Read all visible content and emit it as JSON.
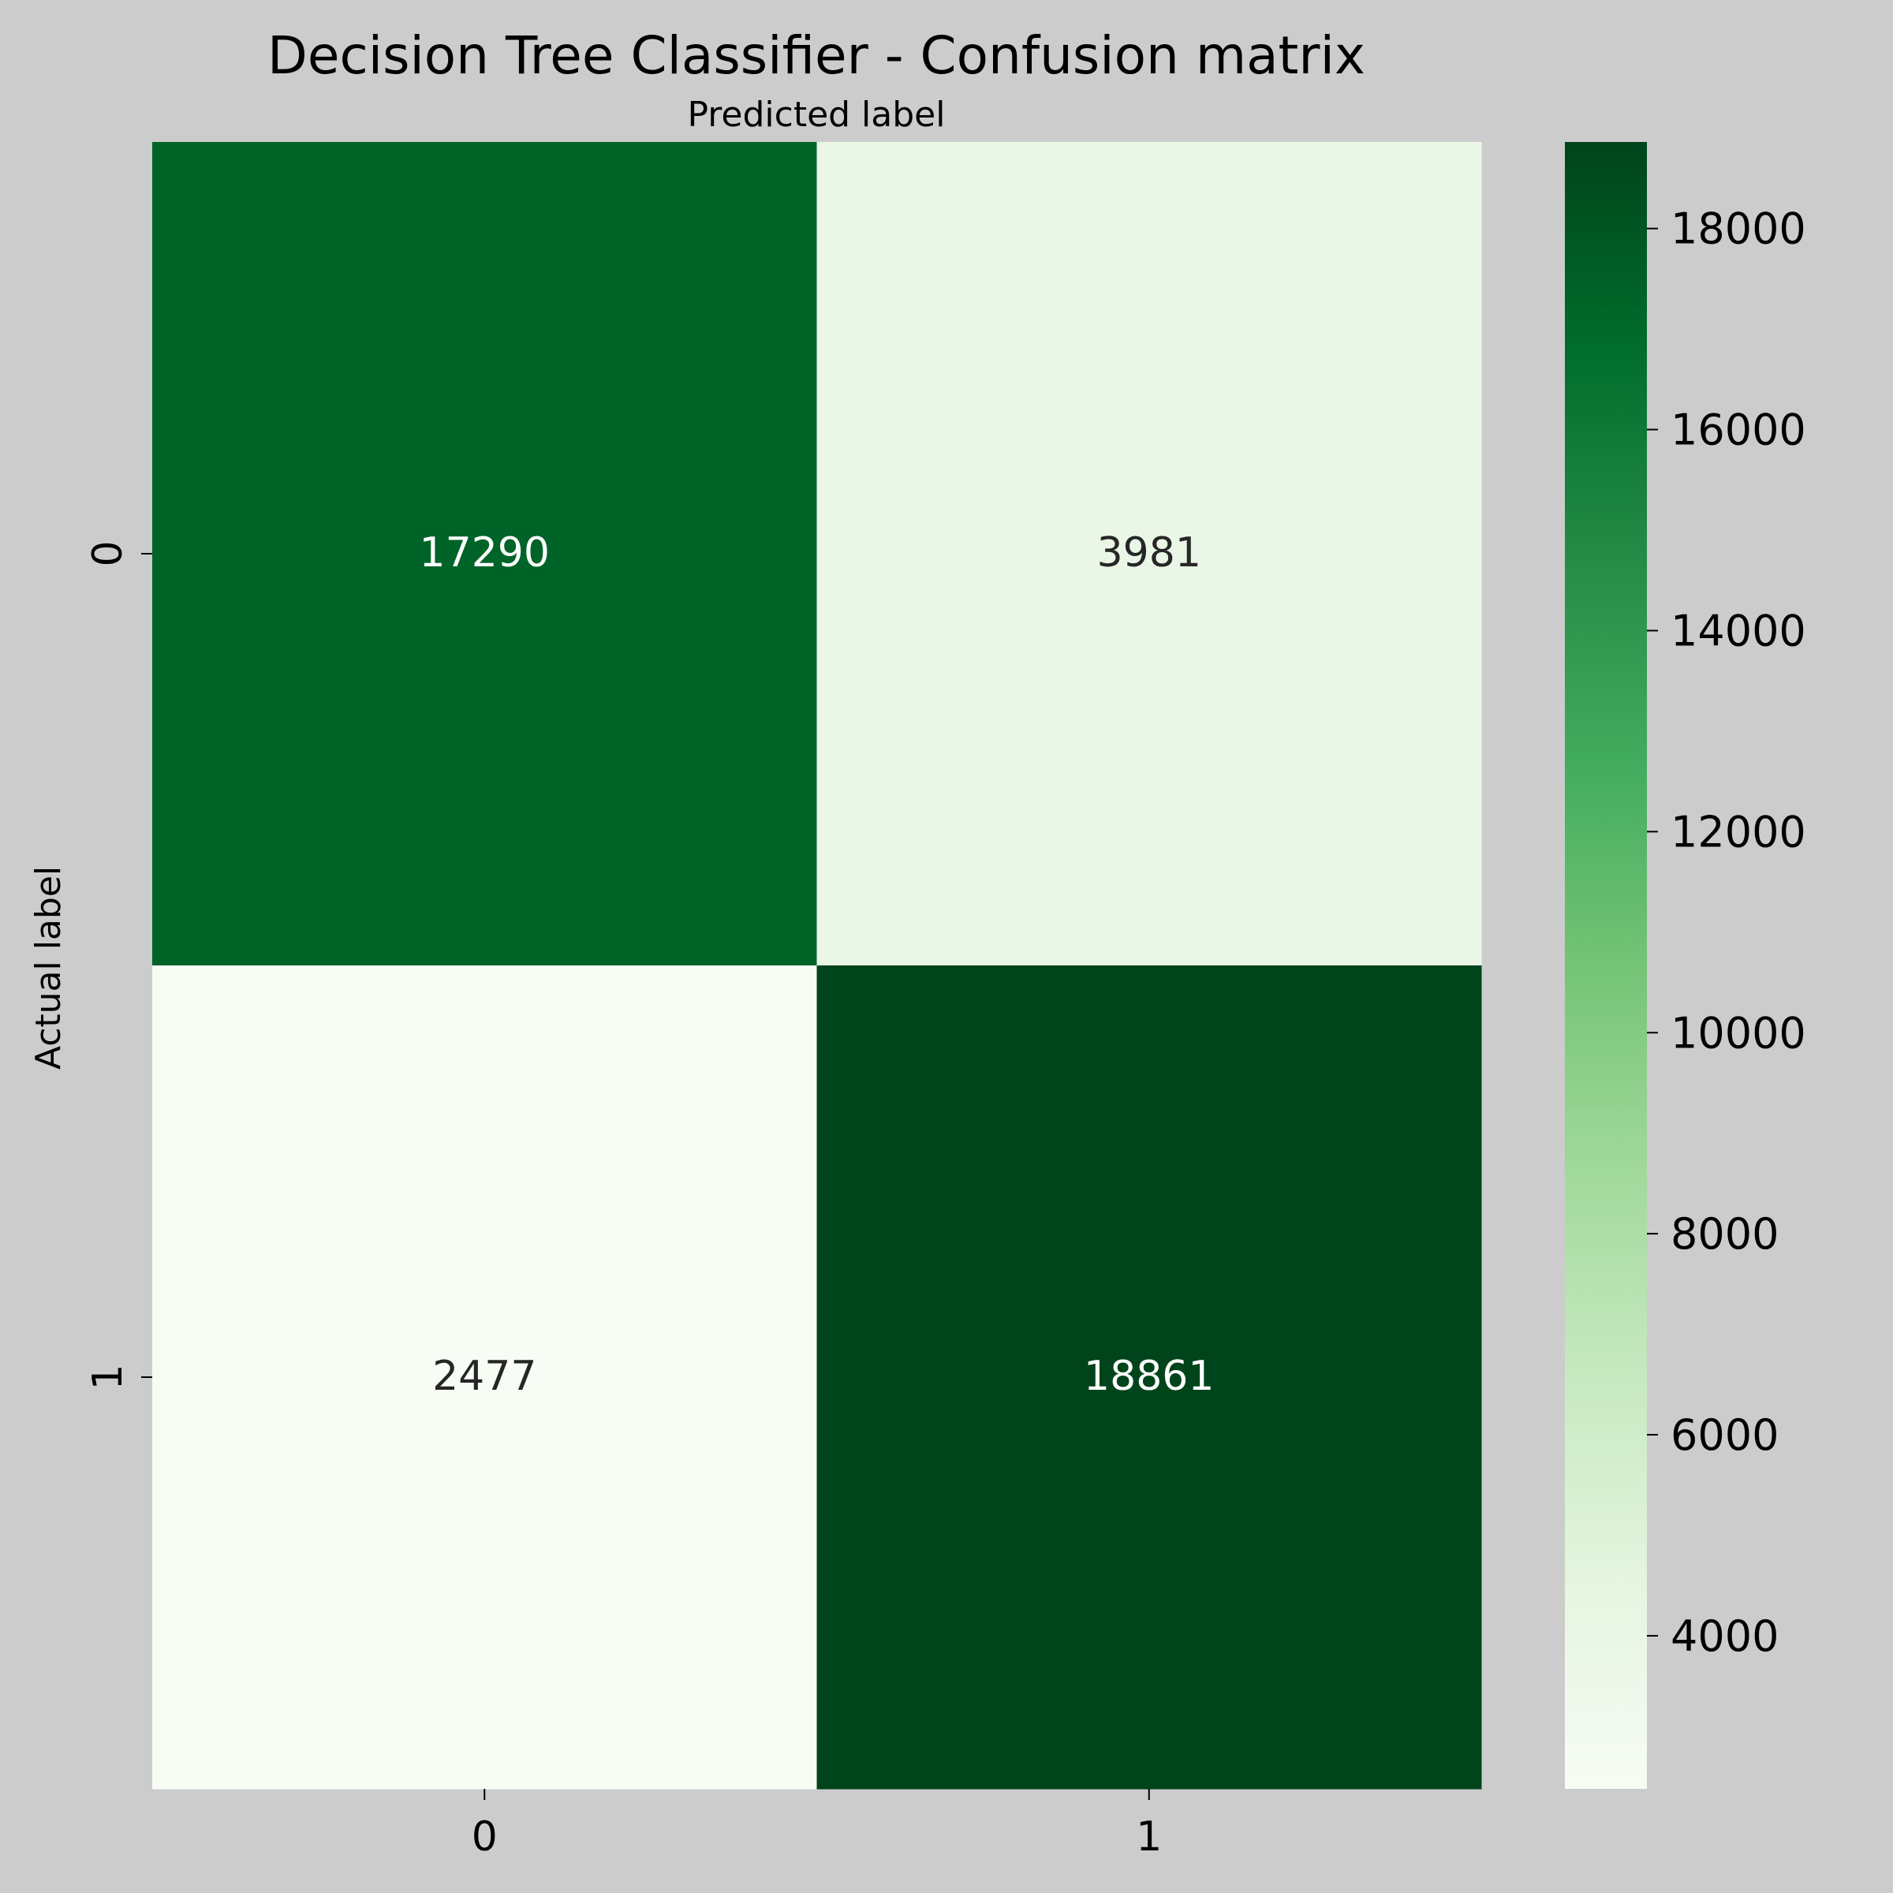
{
  "chart_data": {
    "type": "heatmap",
    "title": "Decision Tree Classifier - Confusion matrix",
    "xlabel": "Predicted label",
    "ylabel": "Actual label",
    "x_categories": [
      "0",
      "1"
    ],
    "y_categories": [
      "0",
      "1"
    ],
    "values": [
      [
        17290,
        3981
      ],
      [
        2477,
        18861
      ]
    ],
    "colormap": "Greens",
    "colorbar": {
      "range": [
        2477,
        18861
      ],
      "ticks": [
        4000,
        6000,
        8000,
        10000,
        12000,
        14000,
        16000,
        18000
      ],
      "tick_labels": [
        "4000",
        "6000",
        "8000",
        "10000",
        "12000",
        "14000",
        "16000",
        "18000"
      ]
    },
    "colors": {
      "background": "#cccccc",
      "gradient": [
        "#f7fcf5",
        "#e5f5e0",
        "#c7e9c0",
        "#a1d99b",
        "#74c476",
        "#41ab5d",
        "#238b45",
        "#006d2c",
        "#00441b"
      ]
    }
  }
}
